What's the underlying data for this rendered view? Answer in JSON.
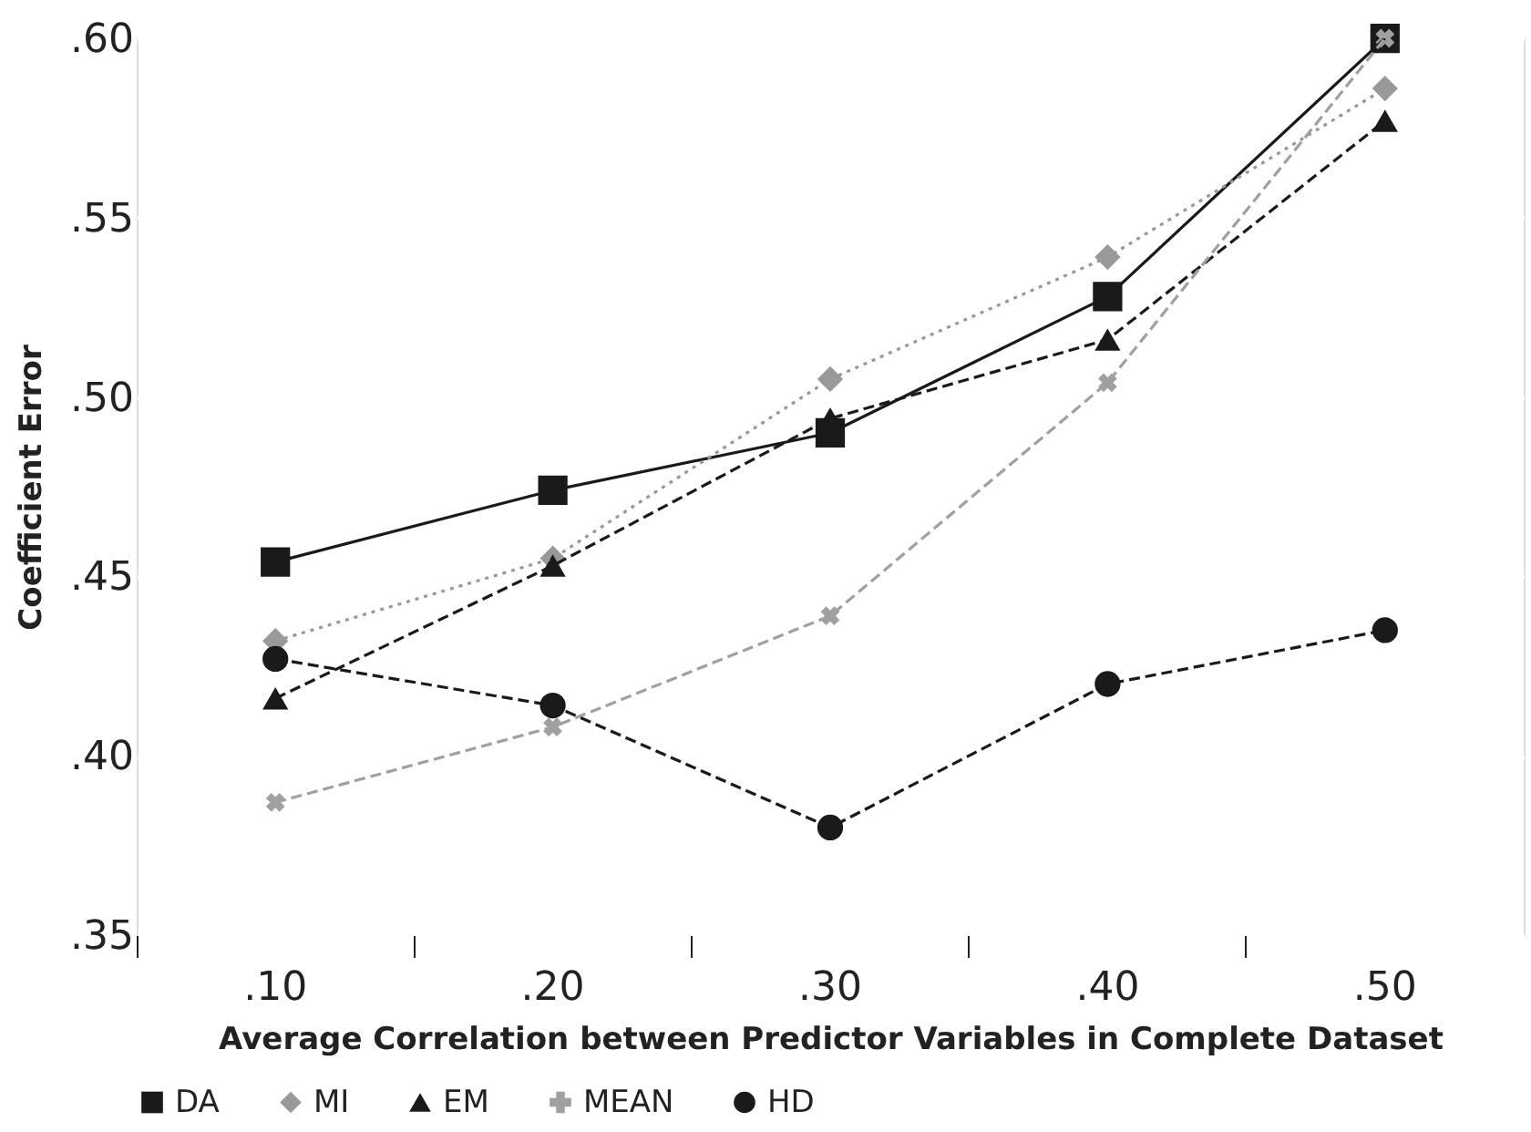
{
  "chart_data": {
    "type": "line",
    "xlabel": "Average Correlation between Predictor Variables in Complete Dataset",
    "ylabel": "Coefficient Error",
    "categories": [
      ".10",
      ".20",
      ".30",
      ".40",
      ".50"
    ],
    "series": [
      {
        "name": "DA",
        "color": "#1a1a1a",
        "marker": "square",
        "line_style": "solid",
        "values": [
          0.454,
          0.474,
          0.49,
          0.528,
          0.6
        ]
      },
      {
        "name": "MI",
        "color": "#999999",
        "marker": "diamond",
        "line_style": "dotted",
        "values": [
          0.432,
          0.455,
          0.505,
          0.539,
          0.586
        ]
      },
      {
        "name": "EM",
        "color": "#1a1a1a",
        "marker": "triangle",
        "line_style": "dashed",
        "values": [
          0.416,
          0.453,
          0.494,
          0.516,
          0.577
        ]
      },
      {
        "name": "MEAN",
        "color": "#a0a0a0",
        "marker": "cross",
        "line_style": "dashed",
        "values": [
          0.387,
          0.408,
          0.439,
          0.504,
          0.6
        ]
      },
      {
        "name": "HD",
        "color": "#1a1a1a",
        "marker": "circle",
        "line_style": "dashed",
        "values": [
          0.427,
          0.414,
          0.38,
          0.42,
          0.435
        ]
      }
    ],
    "ylim": [
      0.35,
      0.6
    ],
    "yticks": [
      {
        "value": 0.35,
        "label": ".35"
      },
      {
        "value": 0.4,
        "label": ".40"
      },
      {
        "value": 0.45,
        "label": ".45"
      },
      {
        "value": 0.5,
        "label": ".50"
      },
      {
        "value": 0.55,
        "label": ".55"
      },
      {
        "value": 0.6,
        "label": ".60"
      }
    ],
    "grid": "y",
    "legend": "bottom left"
  }
}
